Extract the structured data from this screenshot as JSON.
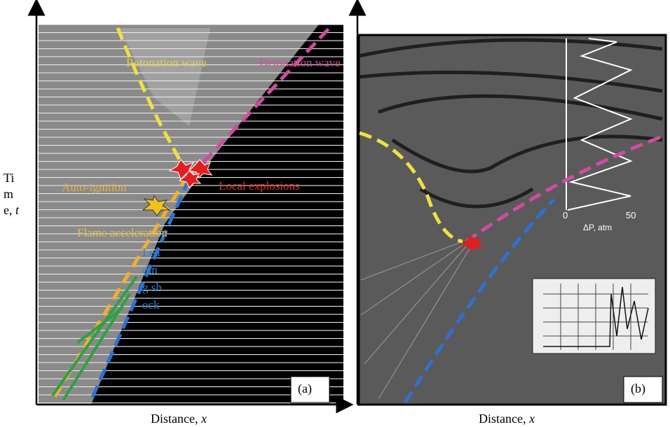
{
  "y_axis_label": {
    "text": "Time,",
    "symbol": "t"
  },
  "panel_a": {
    "label": "(a)",
    "x_axis_label": {
      "text": "Distance,",
      "symbol": "x"
    },
    "annotations": {
      "retonation_wave": "Retonation wave",
      "detonation_wave": "Detonation wave",
      "auto_ignition": "Auto-ignition",
      "local_explosions": "Local explosions",
      "flame_acceleration": "Flame acceleration",
      "leading_shock": "Leading shock"
    }
  },
  "panel_b": {
    "label": "(b)",
    "x_axis_label": {
      "text": "Distance,",
      "symbol": "x"
    },
    "inset_axis": {
      "tick_0": "0",
      "tick_50": "50",
      "label": "ΔP, atm"
    }
  }
}
